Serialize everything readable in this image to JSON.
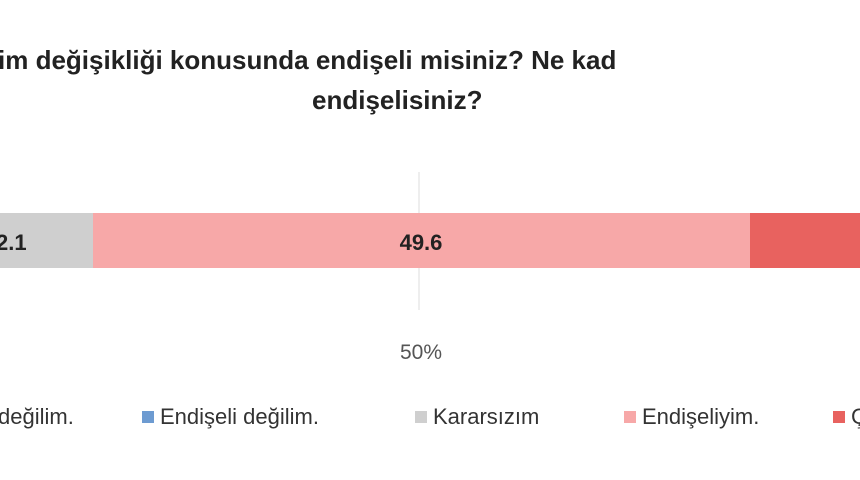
{
  "title": {
    "line1": "im değişikliği konusunda endişeli misiniz? Ne kad",
    "line2": "endişelisiniz?"
  },
  "chart_data": {
    "type": "bar",
    "orientation": "horizontal",
    "stacked": true,
    "segments": [
      {
        "name": "Endişeli değilim.",
        "value": null,
        "label": "",
        "color": "#6d9bd1"
      },
      {
        "name": "Kararsızım",
        "value": 2.1,
        "label": "2.1",
        "color": "#cfcfcf"
      },
      {
        "name": "Endişeliyim.",
        "value": 49.6,
        "label": "49.6",
        "color": "#f7a8a8"
      },
      {
        "name": "Ç",
        "value": null,
        "label": "",
        "color": "#e8625f"
      }
    ],
    "reference_line": {
      "value": 50,
      "label": "50%"
    },
    "legend_entries": [
      {
        "label": "değilim.",
        "color": null
      },
      {
        "label": "Endişeli değilim.",
        "color": "#6d9bd1"
      },
      {
        "label": "Kararsızım",
        "color": "#cfcfcf"
      },
      {
        "label": "Endişeliyim.",
        "color": "#f7a8a8"
      },
      {
        "label": "Ç",
        "color": "#e8625f"
      }
    ],
    "legend_placement": "bottom"
  }
}
